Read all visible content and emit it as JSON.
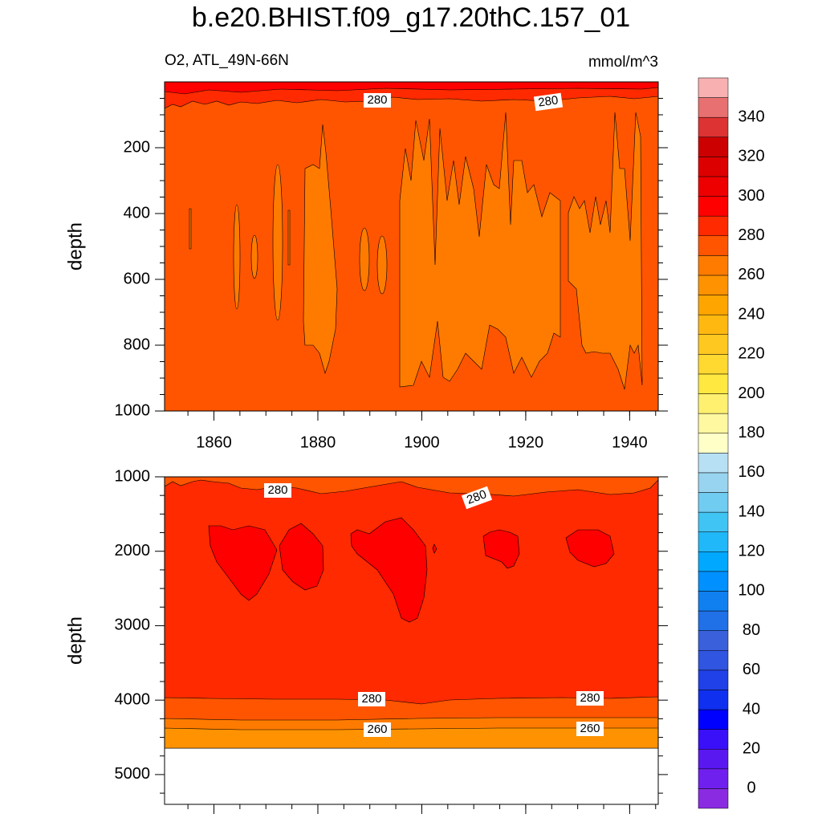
{
  "chart_data": {
    "type": "contour",
    "title": "b.e20.BHIST.f09_g17.20thC.157_01",
    "subtitle_left": "O2, ATL_49N-66N",
    "subtitle_right": "mmol/m^3",
    "panels": [
      {
        "ylabel": "depth",
        "xlim": [
          1850.5,
          1945.5
        ],
        "xticks": [
          1860,
          1880,
          1900,
          1920,
          1940
        ],
        "show_x_tick_labels": true,
        "ylim": [
          0,
          1000
        ],
        "y_reversed": true,
        "yticks": [
          200,
          400,
          600,
          800,
          1000
        ],
        "contour_labels": [
          280,
          280
        ]
      },
      {
        "ylabel": "depth",
        "xlim": [
          1850.5,
          1945.5
        ],
        "xticks": [
          1860,
          1880,
          1900,
          1920,
          1940
        ],
        "show_x_tick_labels": false,
        "ylim": [
          1000,
          5400
        ],
        "y_reversed": true,
        "yticks": [
          1000,
          2000,
          3000,
          4000,
          5000
        ],
        "contour_labels": [
          280,
          280,
          280,
          280,
          260,
          260
        ]
      }
    ],
    "colorbar": {
      "labels": [
        0,
        20,
        40,
        60,
        80,
        100,
        120,
        140,
        160,
        180,
        200,
        220,
        240,
        260,
        280,
        300,
        320,
        340
      ],
      "colors": [
        "#8a2be2",
        "#7020ee",
        "#5a18f0",
        "#3a10f8",
        "#0000ff",
        "#1030f0",
        "#2040e8",
        "#3055e0",
        "#3a60dc",
        "#2070e8",
        "#1080f0",
        "#0090ff",
        "#00a8ff",
        "#20b8f8",
        "#40c4f4",
        "#70ccf0",
        "#98d4f0",
        "#b8e0f4",
        "#ffffc8",
        "#fff8a0",
        "#fff070",
        "#ffe840",
        "#ffd830",
        "#ffc820",
        "#ffb810",
        "#ffa500",
        "#ff9200",
        "#ff7b00",
        "#ff5500",
        "#ff2a00",
        "#ff0000",
        "#ee0000",
        "#dd0000",
        "#cc0000",
        "#dd3333",
        "#e87070",
        "#f8b0b0"
      ]
    }
  }
}
